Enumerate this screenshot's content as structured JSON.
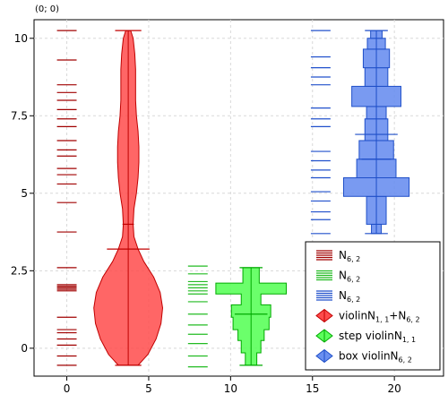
{
  "coord_readout": "(0; 0)",
  "chart_data": {
    "type": "violin",
    "xlim": [
      -2,
      23
    ],
    "ylim": [
      -0.9,
      10.6
    ],
    "xticks": [
      0,
      5,
      10,
      15,
      20
    ],
    "yticks": [
      0,
      2.5,
      5,
      7.5,
      10
    ],
    "xtick_labels": [
      "0",
      "5",
      "10",
      "15",
      "20"
    ],
    "ytick_labels": [
      "0",
      "2.5",
      "5",
      "7.5",
      "10"
    ],
    "grid": true,
    "legend_position": "bottom-right",
    "colors": {
      "red": "#ff4b4b",
      "red_dark": "#c00000",
      "green": "#5bff5b",
      "green_dark": "#00aa00",
      "blue": "#6a8ff0",
      "blue_dark": "#1f4fc8"
    },
    "rug_series": [
      {
        "label_base": "N",
        "label_sub": "6, 2",
        "color": "#a00000",
        "x": 0,
        "halfwidth": 0.6,
        "values": [
          10.25,
          9.3,
          8.5,
          8.25,
          8.0,
          7.7,
          7.4,
          7.15,
          6.7,
          6.4,
          6.2,
          5.8,
          5.6,
          5.3,
          4.7,
          3.75,
          2.6,
          2.05,
          2.0,
          1.95,
          1.9,
          1.85,
          1.0,
          0.6,
          0.5,
          0.3,
          0.1,
          -0.25,
          -0.55
        ]
      },
      {
        "label_base": "N",
        "label_sub": "6, 2",
        "color": "#22bb22",
        "x": 8.0,
        "halfwidth": 0.6,
        "values": [
          2.65,
          2.4,
          2.15,
          2.05,
          1.95,
          1.85,
          1.75,
          1.5,
          1.1,
          0.75,
          0.45,
          0.15,
          -0.25,
          -0.6
        ]
      },
      {
        "label_base": "N",
        "label_sub": "6, 2",
        "color": "#2050cc",
        "x": 15.5,
        "halfwidth": 0.6,
        "values": [
          10.25,
          9.4,
          9.05,
          8.75,
          8.5,
          7.75,
          7.4,
          7.15,
          6.35,
          6.05,
          5.75,
          5.5,
          5.05,
          4.75,
          4.4,
          4.15,
          3.7
        ]
      }
    ],
    "violin": {
      "label_base": "violinN",
      "label_sub1": "1, 1",
      "label_mid": "+N",
      "label_sub2": "6, 2",
      "x": 3.75,
      "min": -0.55,
      "max": 10.25,
      "median": 3.2,
      "mean": 4.0,
      "profile": [
        [
          -0.55,
          0.6
        ],
        [
          -0.2,
          1.2
        ],
        [
          0.3,
          1.7
        ],
        [
          0.8,
          2.0
        ],
        [
          1.3,
          2.1
        ],
        [
          1.8,
          1.95
        ],
        [
          2.3,
          1.55
        ],
        [
          2.8,
          0.95
        ],
        [
          3.2,
          0.6
        ],
        [
          3.6,
          0.35
        ],
        [
          4.0,
          0.3
        ],
        [
          4.5,
          0.35
        ],
        [
          5.0,
          0.5
        ],
        [
          5.5,
          0.6
        ],
        [
          6.0,
          0.65
        ],
        [
          6.5,
          0.65
        ],
        [
          7.0,
          0.6
        ],
        [
          7.5,
          0.5
        ],
        [
          8.0,
          0.45
        ],
        [
          8.5,
          0.45
        ],
        [
          9.0,
          0.45
        ],
        [
          9.5,
          0.4
        ],
        [
          10.0,
          0.3
        ],
        [
          10.25,
          0.15
        ]
      ],
      "median_halfwidth": 1.3,
      "mean_halfwidth": 0.35,
      "endcap_halfwidth": 0.8
    },
    "step_violin": {
      "label_base": "step violinN",
      "label_sub": "1, 1",
      "x": 11.25,
      "min": -0.55,
      "max": 2.6,
      "median": 1.1,
      "mean": 1.1,
      "steps": [
        [
          -0.55,
          -0.15,
          0.35
        ],
        [
          -0.15,
          0.25,
          0.6
        ],
        [
          0.25,
          0.6,
          0.8
        ],
        [
          0.6,
          1.0,
          1.1
        ],
        [
          1.0,
          1.4,
          1.2
        ],
        [
          1.4,
          1.75,
          0.6
        ],
        [
          1.75,
          2.1,
          2.15
        ],
        [
          2.1,
          2.6,
          0.5
        ]
      ],
      "median_halfwidth": 1.0,
      "endcap_halfwidth": 0.7
    },
    "box_violin": {
      "label_base": "box violinN",
      "label_sub": "6, 2",
      "x": 18.9,
      "min": 3.7,
      "max": 10.25,
      "median": 6.1,
      "mean": 6.9,
      "boxes": [
        [
          3.7,
          4.0,
          0.3
        ],
        [
          4.0,
          4.9,
          0.6
        ],
        [
          4.9,
          5.5,
          2.0
        ],
        [
          5.5,
          6.1,
          1.2
        ],
        [
          6.1,
          6.7,
          1.05
        ],
        [
          6.7,
          7.4,
          0.7
        ],
        [
          7.4,
          7.8,
          0.6
        ],
        [
          7.8,
          8.45,
          1.5
        ],
        [
          8.45,
          9.05,
          0.7
        ],
        [
          9.05,
          9.65,
          0.8
        ],
        [
          9.65,
          10.0,
          0.55
        ],
        [
          10.0,
          10.25,
          0.35
        ]
      ],
      "mean_halfwidth": 1.3,
      "median_halfwidth": 0.9,
      "endcap_halfwidth": 0.7
    }
  }
}
